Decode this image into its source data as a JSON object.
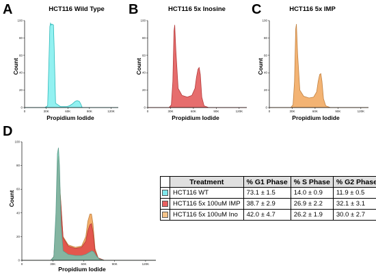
{
  "panels": {
    "A": {
      "letter": "A",
      "title": "HCT116 Wild Type",
      "xlabel": "Propidium Iodide",
      "ylabel": "Count"
    },
    "B": {
      "letter": "B",
      "title": "HCT116 5x Inosine",
      "xlabel": "Propidium Iodide",
      "ylabel": "Count"
    },
    "C": {
      "letter": "C",
      "title": "HCT116 5x IMP",
      "xlabel": "Propidium Iodide",
      "ylabel": "Count"
    },
    "D": {
      "letter": "D",
      "title": "",
      "xlabel": "Propidium Iodide",
      "ylabel": "Count"
    }
  },
  "colors": {
    "wt": "#39e6e6",
    "inosine": "#e04848",
    "imp": "#f0a050",
    "overlay_wt": "#73c6b0"
  },
  "table": {
    "headers": [
      "Treatment",
      "% G1 Phase",
      "% S Phase",
      "% G2 Phase"
    ],
    "rows": [
      {
        "color": "#7fe8ec",
        "treatment": "HCT116 WT",
        "g1": "73.1 ± 1.5",
        "s": "14.0 ± 0.9",
        "g2": "11.9 ± 0.5"
      },
      {
        "color": "#e86060",
        "treatment": "HCT116 5x 100uM IMP",
        "g1": "38.7 ± 2.9",
        "s": "26.9 ± 2.2",
        "g2": "32.1 ± 3.1"
      },
      {
        "color": "#f5c48a",
        "treatment": "HCT116 5x 100uM Ino",
        "g1": "42.0 ± 4.7",
        "s": "26.2 ± 1.9",
        "g2": "30.0 ± 2.7"
      }
    ]
  },
  "chart_data": [
    {
      "panel": "A",
      "type": "area",
      "title": "HCT116 Wild Type",
      "xlabel": "Propidium Iodide",
      "ylabel": "Count",
      "xlim": [
        0,
        130000
      ],
      "ylim": [
        0,
        100
      ],
      "xticks": [
        0,
        30000,
        60000,
        90000,
        120000
      ],
      "xtick_labels": [
        "0",
        "30K",
        "60K",
        "90K",
        "120K"
      ],
      "yticks": [
        0,
        20,
        40,
        60,
        80,
        100
      ],
      "ytick_labels": [
        "0",
        "20",
        "40",
        "60",
        "80",
        "100"
      ],
      "series": [
        {
          "color_key": "wt",
          "x": [
            0,
            28000,
            32000,
            34000,
            35000,
            36000,
            37000,
            38000,
            40000,
            41000,
            43000,
            50000,
            58000,
            62000,
            66000,
            70000,
            73000,
            76000,
            78000,
            80000,
            130000
          ],
          "y": [
            0,
            0,
            2,
            60,
            93,
            97,
            95,
            96,
            95,
            70,
            5,
            1,
            1,
            2,
            4,
            7,
            8,
            7,
            4,
            0,
            0
          ]
        }
      ]
    },
    {
      "panel": "B",
      "type": "area",
      "title": "HCT116 5x Inosine",
      "xlabel": "Propidium Iodide",
      "ylabel": "Count",
      "xlim": [
        0,
        130000
      ],
      "ylim": [
        0,
        100
      ],
      "xticks": [
        0,
        30000,
        60000,
        90000,
        120000
      ],
      "xtick_labels": [
        "0",
        "30K",
        "60K",
        "90K",
        "120K"
      ],
      "yticks": [
        0,
        20,
        40,
        60,
        80,
        100
      ],
      "ytick_labels": [
        "0",
        "20",
        "40",
        "60",
        "80",
        "100"
      ],
      "series": [
        {
          "color_key": "inosine",
          "x": [
            0,
            28000,
            31000,
            33000,
            34500,
            35500,
            37000,
            40000,
            45000,
            52000,
            58000,
            62000,
            64000,
            66000,
            67500,
            69000,
            71000,
            74000,
            80000,
            130000
          ],
          "y": [
            0,
            0,
            3,
            30,
            88,
            95,
            65,
            22,
            14,
            12,
            14,
            22,
            35,
            44,
            46,
            38,
            12,
            2,
            0,
            0
          ]
        }
      ]
    },
    {
      "panel": "C",
      "type": "area",
      "title": "HCT116 5x IMP",
      "xlabel": "Propidium Iodide",
      "ylabel": "Count",
      "xlim": [
        0,
        130000
      ],
      "ylim": [
        0,
        100
      ],
      "xticks": [
        0,
        30000,
        60000,
        90000,
        120000
      ],
      "xtick_labels": [
        "0",
        "30K",
        "60K",
        "90K",
        "120K"
      ],
      "yticks": [
        0,
        20,
        40,
        60,
        80,
        100
      ],
      "ytick_labels": [
        "0",
        "20",
        "40",
        "60",
        "80",
        "100"
      ],
      "series": [
        {
          "color_key": "imp",
          "x": [
            0,
            28000,
            31000,
            33000,
            34500,
            35500,
            37000,
            40000,
            45000,
            52000,
            58000,
            62000,
            64000,
            66000,
            67500,
            69000,
            71000,
            74000,
            80000,
            130000
          ],
          "y": [
            0,
            0,
            3,
            30,
            90,
            96,
            62,
            20,
            13,
            11,
            12,
            18,
            30,
            38,
            39,
            30,
            10,
            2,
            0,
            0
          ]
        }
      ]
    },
    {
      "panel": "D",
      "type": "area",
      "title": "",
      "xlabel": "Propidium Iodide",
      "ylabel": "Count",
      "xlim": [
        0,
        130000
      ],
      "ylim": [
        0,
        100
      ],
      "xticks": [
        0,
        30000,
        60000,
        90000,
        120000
      ],
      "xtick_labels": [
        "0",
        "30K",
        "60K",
        "90K",
        "120K"
      ],
      "yticks": [
        0,
        20,
        40,
        60,
        80,
        100
      ],
      "ytick_labels": [
        "0",
        "20",
        "40",
        "60",
        "80",
        "100"
      ],
      "series": [
        {
          "color_key": "imp",
          "x": [
            0,
            28000,
            31000,
            33000,
            34500,
            35500,
            37000,
            40000,
            45000,
            52000,
            58000,
            62000,
            64000,
            66000,
            67500,
            69000,
            71000,
            74000,
            80000,
            130000
          ],
          "y": [
            0,
            0,
            3,
            30,
            82,
            88,
            60,
            20,
            13,
            11,
            12,
            20,
            33,
            39,
            39,
            31,
            10,
            2,
            0,
            0
          ]
        },
        {
          "color_key": "inosine",
          "x": [
            0,
            28000,
            31000,
            33000,
            34500,
            35500,
            37000,
            40000,
            45000,
            52000,
            58000,
            62000,
            64000,
            66000,
            67500,
            69000,
            71000,
            74000,
            80000,
            130000
          ],
          "y": [
            0,
            0,
            3,
            30,
            80,
            85,
            58,
            19,
            12,
            10,
            11,
            16,
            25,
            30,
            31,
            24,
            8,
            2,
            0,
            0
          ]
        },
        {
          "color_key": "overlay_wt",
          "x": [
            0,
            28000,
            31000,
            33000,
            34500,
            35500,
            36500,
            38000,
            40000,
            45000,
            52000,
            58000,
            62000,
            66000,
            68000,
            70000,
            72000,
            75000,
            80000,
            130000
          ],
          "y": [
            0,
            0,
            3,
            40,
            90,
            95,
            80,
            30,
            8,
            5,
            4,
            4,
            5,
            7,
            8,
            7,
            4,
            1,
            0,
            0
          ]
        }
      ]
    }
  ]
}
